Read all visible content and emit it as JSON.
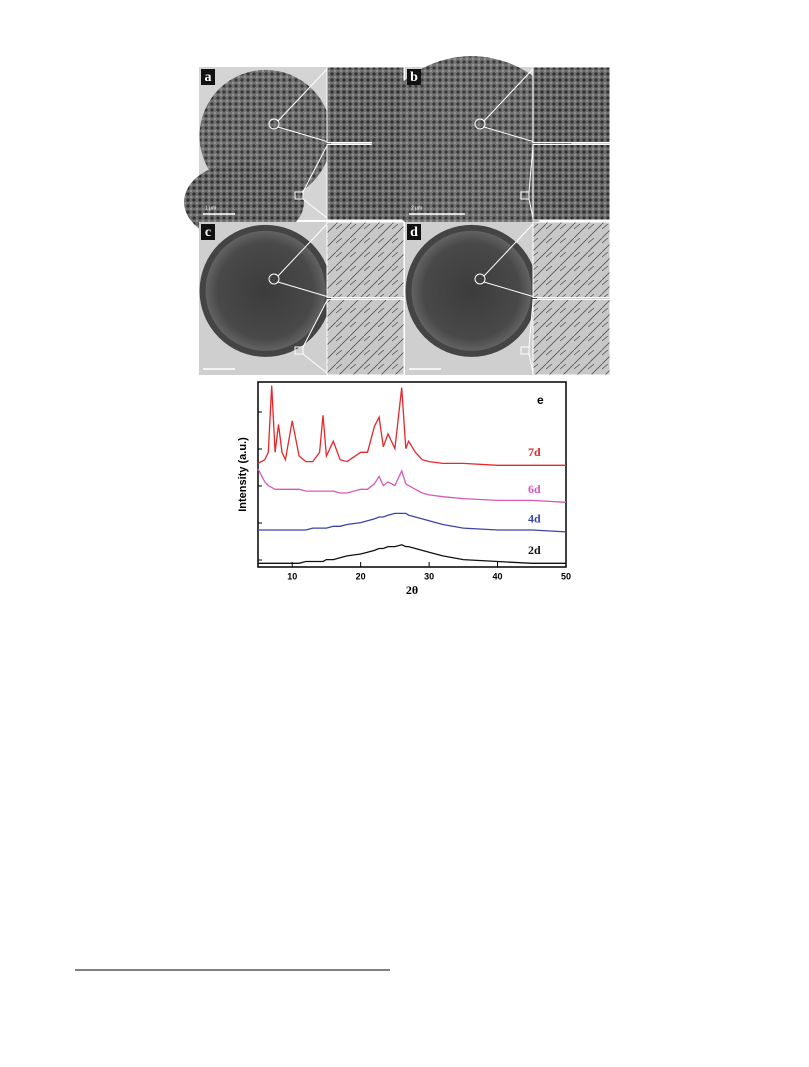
{
  "figure": {
    "panels": [
      {
        "label": "a",
        "scale": "1 μm"
      },
      {
        "label": "b",
        "scale": "2 μm"
      },
      {
        "label": "c"
      },
      {
        "label": "d"
      }
    ]
  },
  "chart_data": {
    "type": "line",
    "annotation": "e",
    "xlabel": "2θ",
    "ylabel": "Intensity (a.u.)",
    "x": [
      5,
      6,
      6.5,
      7,
      7.5,
      8,
      8.5,
      9,
      10,
      11,
      12,
      13,
      14,
      14.5,
      15,
      16,
      17,
      18,
      20,
      21,
      22,
      22.7,
      23.3,
      24,
      25,
      26,
      26.6,
      27,
      28,
      29,
      30,
      32,
      35,
      40,
      45,
      50
    ],
    "series": [
      {
        "name": "7d",
        "color": "#e8262b",
        "values": [
          56,
          58,
          62,
          98,
          62,
          77,
          62,
          58,
          79,
          60,
          57,
          57,
          62,
          82,
          60,
          68,
          58,
          57,
          62,
          62,
          76,
          81,
          65,
          72,
          64,
          97,
          64,
          68,
          62,
          58,
          57,
          56,
          56,
          55,
          55,
          55
        ]
      },
      {
        "name": "6d",
        "color": "#d858b8",
        "values": [
          53,
          46,
          44,
          43,
          42,
          42,
          42,
          42,
          42,
          42,
          41,
          41,
          41,
          41,
          41,
          41,
          40,
          40,
          42,
          42,
          45,
          49,
          44,
          46,
          44,
          52,
          45,
          44,
          42,
          40,
          39,
          38,
          37,
          36,
          36,
          35
        ]
      },
      {
        "name": "4d",
        "color": "#3b45a8",
        "values": [
          20,
          20,
          20,
          20,
          20,
          20,
          20,
          20,
          20,
          20,
          20,
          21,
          21,
          21,
          21,
          22,
          22,
          23,
          24,
          25,
          26,
          27,
          27,
          28,
          29,
          29,
          29,
          28,
          27,
          26,
          25,
          23,
          21,
          20,
          20,
          19
        ]
      },
      {
        "name": "2d",
        "color": "#111111",
        "values": [
          2,
          2,
          2,
          2,
          2,
          2,
          2,
          2,
          2,
          2,
          3,
          3,
          3,
          3,
          4,
          4,
          5,
          6,
          7,
          8,
          9,
          10,
          10,
          11,
          11,
          12,
          11,
          11,
          10,
          9,
          8,
          6,
          4,
          3,
          2,
          2
        ]
      }
    ],
    "xlim": [
      5,
      50
    ],
    "xticks": [
      10,
      20,
      30,
      40,
      50
    ],
    "ylim": [
      0,
      100
    ]
  }
}
